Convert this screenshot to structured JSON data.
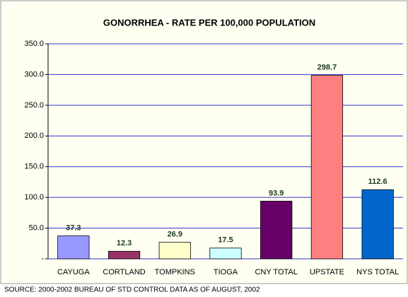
{
  "chart_data": {
    "type": "bar",
    "title": "GONORRHEA - RATE PER 100,000 POPULATION",
    "categories": [
      "CAYUGA",
      "CORTLAND",
      "TOMPKINS",
      "TIOGA",
      "CNY TOTAL",
      "UPSTATE",
      "NYS TOTAL"
    ],
    "values": [
      37.3,
      12.3,
      26.9,
      17.5,
      93.9,
      298.7,
      112.6
    ],
    "colors": [
      "#9999ff",
      "#993366",
      "#ffffcc",
      "#ccffff",
      "#660066",
      "#ff8080",
      "#0066cc"
    ],
    "ylim": [
      0,
      350
    ],
    "yticks": [
      {
        "value": 0,
        "label": "-"
      },
      {
        "value": 50,
        "label": "50.0"
      },
      {
        "value": 100,
        "label": "100.0"
      },
      {
        "value": 150,
        "label": "150.0"
      },
      {
        "value": 200,
        "label": "200.0"
      },
      {
        "value": 250,
        "label": "250.0"
      },
      {
        "value": 300,
        "label": "300.0"
      },
      {
        "value": 350,
        "label": "350.0"
      }
    ],
    "grid": true,
    "source": "SOURCE: 2000-2002 BUREAU OF STD CONTROL DATA AS OF AUGUST, 2002"
  }
}
